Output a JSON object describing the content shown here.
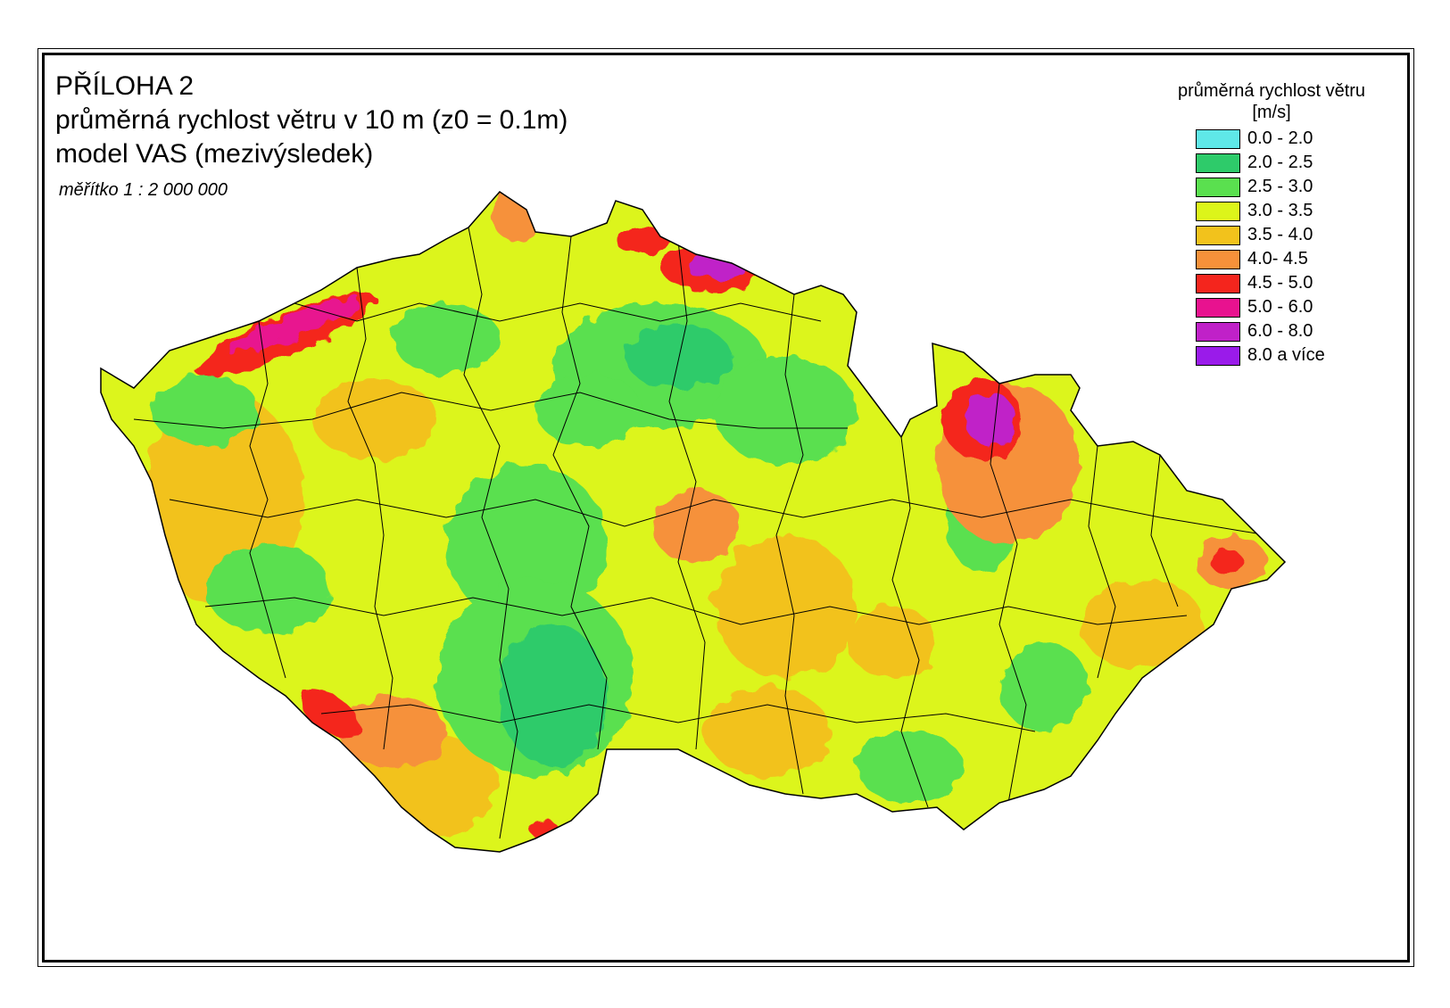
{
  "title": {
    "line1": "PŘÍLOHA 2",
    "line2": "průměrná rychlost větru v 10 m (z0 = 0.1m)",
    "line3": "model VAS (mezivýsledek)"
  },
  "scale": "měřítko 1 : 2 000 000",
  "legend": {
    "title": "průměrná rychlost větru",
    "unit": "[m/s]",
    "items": [
      {
        "label": "0.0 - 2.0",
        "color": "#5fe8e8"
      },
      {
        "label": "2.0 - 2.5",
        "color": "#2ecb6a"
      },
      {
        "label": "2.5 - 3.0",
        "color": "#5ae04f"
      },
      {
        "label": "3.0 - 3.5",
        "color": "#dcf51a"
      },
      {
        "label": "3.5 - 4.0",
        "color": "#f2c21c"
      },
      {
        "label": "4.0- 4.5",
        "color": "#f6913a"
      },
      {
        "label": "4.5 - 5.0",
        "color": "#f4251d"
      },
      {
        "label": "5.0 - 6.0",
        "color": "#e8128f"
      },
      {
        "label": "6.0 - 8.0",
        "color": "#c021c8"
      },
      {
        "label": "8.0 a více",
        "color": "#9a1bea"
      }
    ]
  }
}
